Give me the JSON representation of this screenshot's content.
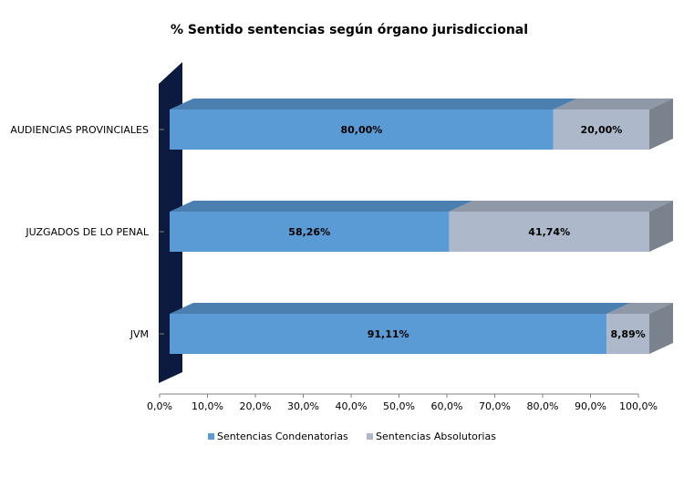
{
  "colors": {
    "condenatorias": "#5b9bd5",
    "absolutorias": "#adb9ca",
    "wall": "#0b1a3e",
    "axis": "#808080"
  },
  "chart_data": {
    "type": "bar",
    "orientation": "horizontal",
    "stacked": true,
    "percent": true,
    "three_d": true,
    "title": "% Sentido sentencias según órgano jurisdiccional",
    "categories": [
      "AUDIENCIAS PROVINCIALES",
      "JUZGADOS DE LO PENAL",
      "JVM"
    ],
    "series": [
      {
        "name": "Sentencias Condenatorias",
        "values": [
          80.0,
          58.26,
          91.11
        ],
        "labels": [
          "80,00%",
          "58,26%",
          "91,11%"
        ]
      },
      {
        "name": "Sentencias Absolutorias",
        "values": [
          20.0,
          41.74,
          8.89
        ],
        "labels": [
          "20,00%",
          "41,74%",
          "8,89%"
        ]
      }
    ],
    "xlim": [
      0,
      100
    ],
    "x_ticks": [
      "0,0%",
      "10,0%",
      "20,0%",
      "30,0%",
      "40,0%",
      "50,0%",
      "60,0%",
      "70,0%",
      "80,0%",
      "90,0%",
      "100,0%"
    ],
    "grid": false,
    "legend_position": "bottom"
  }
}
